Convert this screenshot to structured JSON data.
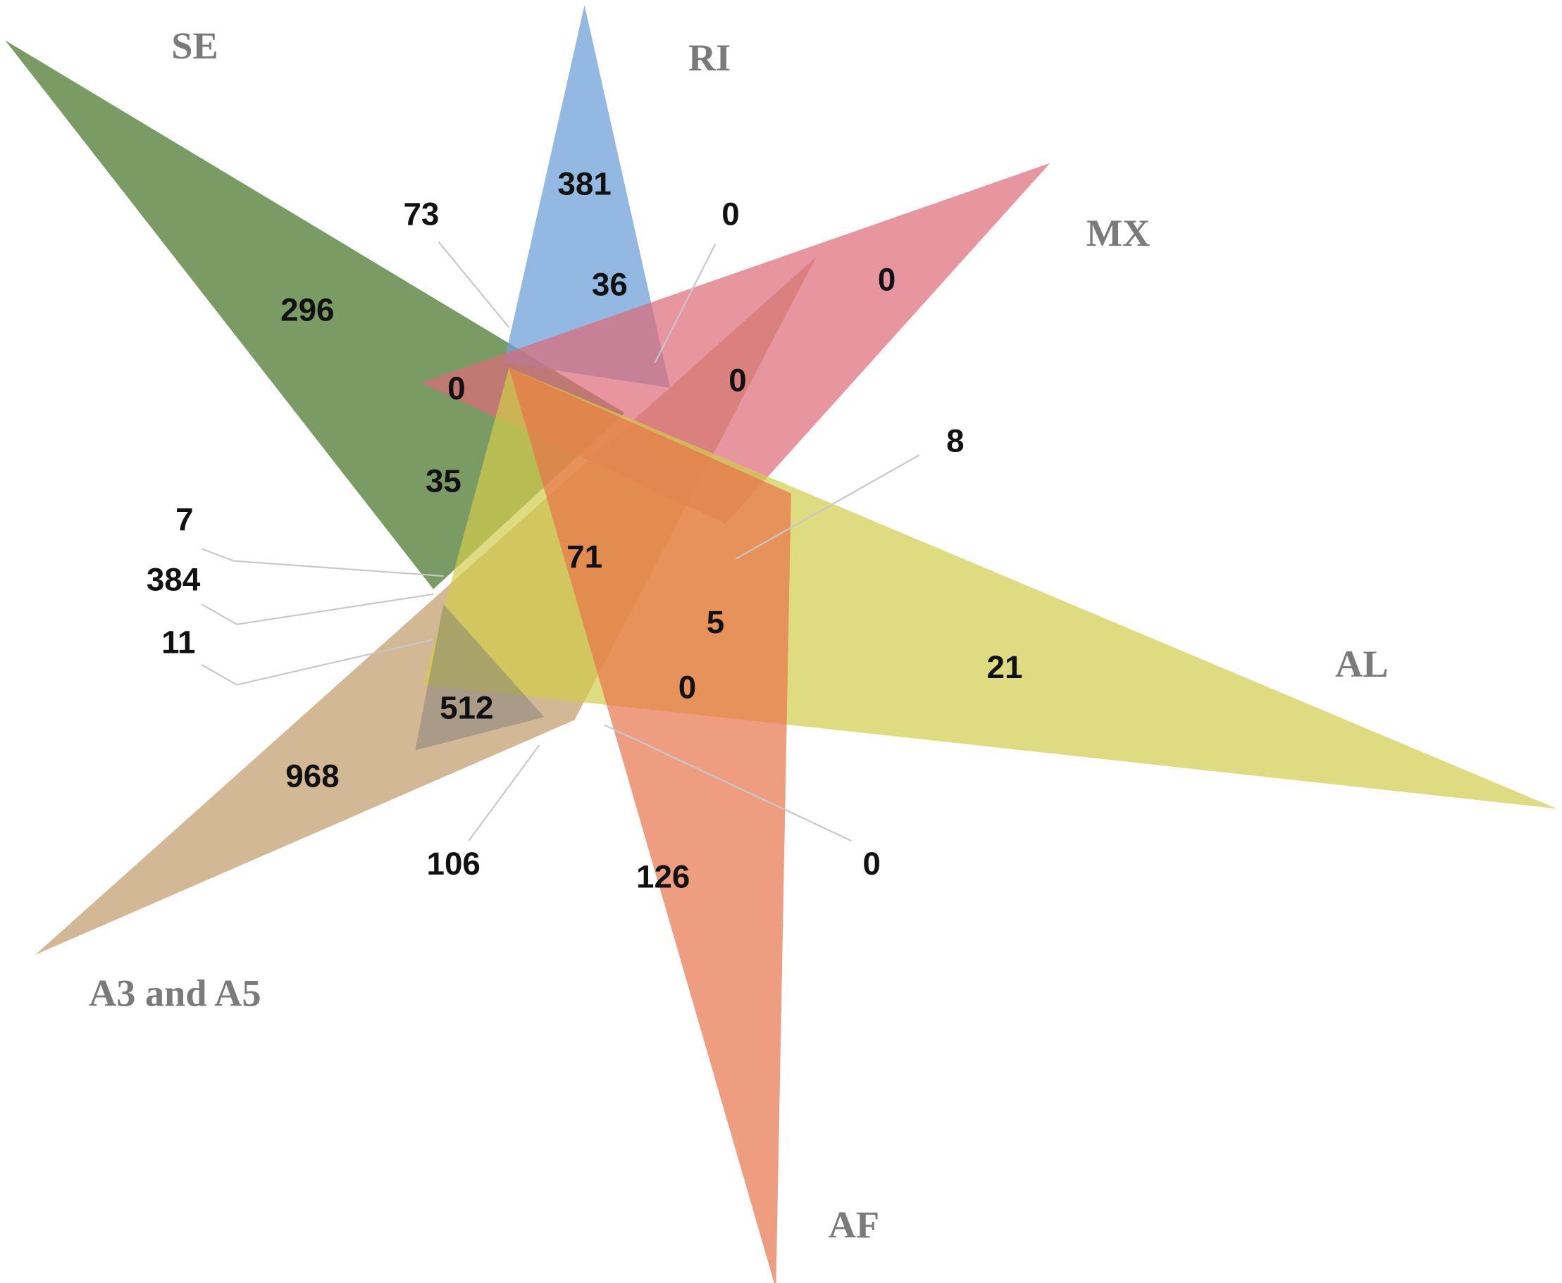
{
  "sets": [
    "SE",
    "RI",
    "MX",
    "AL",
    "A3 and A5",
    "AF"
  ],
  "regions": [
    381,
    73,
    0,
    36,
    296,
    0,
    0,
    0,
    8,
    35,
    71,
    7,
    384,
    11,
    5,
    21,
    0,
    512,
    968,
    106,
    126,
    0
  ]
}
